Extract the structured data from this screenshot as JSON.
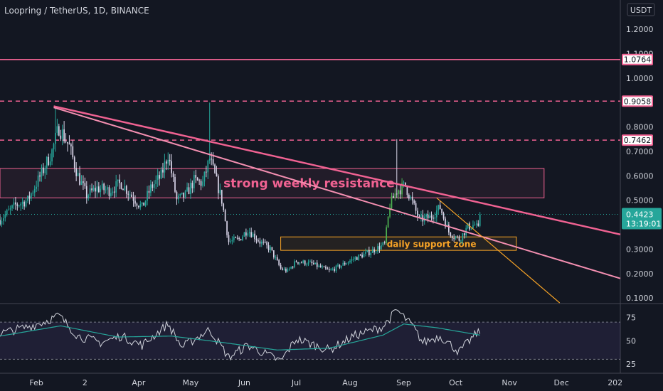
{
  "header": {
    "title": "Loopring / TetherUS, 1D, BINANCE"
  },
  "currency": "USDT",
  "colors": {
    "background": "#131722",
    "up": "#26a69a",
    "up_bright": "#4caf50",
    "down": "#d8d4e8",
    "resistance": "#f06292",
    "trendline_light": "#f48fb1",
    "support": "#f7a326",
    "rsi_line": "#d1d4dc",
    "rsi_ma": "#26a69a",
    "rsi_band": "#2a2e39",
    "grid": "#2a2e39",
    "axis_text": "#d1d4dc",
    "current_price": "#26a69a"
  },
  "chart_data": {
    "type": "candlestick",
    "price_axis": {
      "ticks": [
        "1.2000",
        "1.1000",
        "1.0000",
        "0.9000",
        "0.8000",
        "0.7000",
        "0.6000",
        "0.5000",
        "0.4000",
        "0.3000",
        "0.2000",
        "0.1000"
      ],
      "range": [
        0.08,
        1.32
      ]
    },
    "rsi_axis": {
      "ticks": [
        "75",
        "50",
        "25"
      ],
      "range": [
        15,
        90
      ],
      "band": [
        30,
        70
      ]
    },
    "x_axis": {
      "range": [
        "2021-01-11",
        "2022-01-04"
      ],
      "ticks": [
        {
          "date": "2021-02-01",
          "label": "Feb"
        },
        {
          "date": "2021-03-01",
          "label": "2"
        },
        {
          "date": "2021-04-01",
          "label": "Apr"
        },
        {
          "date": "2021-05-01",
          "label": "May"
        },
        {
          "date": "2021-06-01",
          "label": "Jun"
        },
        {
          "date": "2021-07-01",
          "label": "Jul"
        },
        {
          "date": "2021-08-01",
          "label": "Aug"
        },
        {
          "date": "2021-09-01",
          "label": "Sep"
        },
        {
          "date": "2021-10-01",
          "label": "Oct"
        },
        {
          "date": "2021-11-01",
          "label": "Nov"
        },
        {
          "date": "2021-12-01",
          "label": "Dec"
        },
        {
          "date": "2022-01-01",
          "label": "202"
        }
      ]
    },
    "price_path": [
      [
        "2021-01-11",
        0.42
      ],
      [
        "2021-01-20",
        0.48
      ],
      [
        "2021-01-27",
        0.5
      ],
      [
        "2021-02-04",
        0.61
      ],
      [
        "2021-02-10",
        0.7
      ],
      [
        "2021-02-14",
        0.8
      ],
      [
        "2021-02-20",
        0.72
      ],
      [
        "2021-02-25",
        0.6
      ],
      [
        "2021-03-02",
        0.52
      ],
      [
        "2021-03-08",
        0.55
      ],
      [
        "2021-03-15",
        0.54
      ],
      [
        "2021-03-22",
        0.57
      ],
      [
        "2021-03-29",
        0.51
      ],
      [
        "2021-04-03",
        0.47
      ],
      [
        "2021-04-08",
        0.55
      ],
      [
        "2021-04-14",
        0.6
      ],
      [
        "2021-04-18",
        0.69
      ],
      [
        "2021-04-23",
        0.5
      ],
      [
        "2021-04-28",
        0.52
      ],
      [
        "2021-05-03",
        0.58
      ],
      [
        "2021-05-08",
        0.57
      ],
      [
        "2021-05-12",
        0.67
      ],
      [
        "2021-05-15",
        0.6
      ],
      [
        "2021-05-19",
        0.5
      ],
      [
        "2021-05-23",
        0.33
      ],
      [
        "2021-05-29",
        0.34
      ],
      [
        "2021-06-03",
        0.38
      ],
      [
        "2021-06-10",
        0.33
      ],
      [
        "2021-06-16",
        0.3
      ],
      [
        "2021-06-22",
        0.22
      ],
      [
        "2021-06-26",
        0.21
      ],
      [
        "2021-07-01",
        0.25
      ],
      [
        "2021-07-10",
        0.24
      ],
      [
        "2021-07-20",
        0.21
      ],
      [
        "2021-07-26",
        0.23
      ],
      [
        "2021-08-03",
        0.26
      ],
      [
        "2021-08-13",
        0.29
      ],
      [
        "2021-08-21",
        0.32
      ],
      [
        "2021-08-24",
        0.48
      ],
      [
        "2021-08-28",
        0.54
      ],
      [
        "2021-09-02",
        0.56
      ],
      [
        "2021-09-06",
        0.49
      ],
      [
        "2021-09-10",
        0.42
      ],
      [
        "2021-09-16",
        0.43
      ],
      [
        "2021-09-22",
        0.47
      ],
      [
        "2021-09-27",
        0.37
      ],
      [
        "2021-10-03",
        0.34
      ],
      [
        "2021-10-08",
        0.39
      ],
      [
        "2021-10-12",
        0.4
      ],
      [
        "2021-10-14",
        0.38
      ],
      [
        "2021-10-15",
        0.442
      ]
    ],
    "rsi_path": [
      [
        "2021-01-11",
        58
      ],
      [
        "2021-01-25",
        64
      ],
      [
        "2021-02-05",
        70
      ],
      [
        "2021-02-14",
        77
      ],
      [
        "2021-02-25",
        55
      ],
      [
        "2021-03-10",
        48
      ],
      [
        "2021-03-22",
        55
      ],
      [
        "2021-04-03",
        45
      ],
      [
        "2021-04-18",
        68
      ],
      [
        "2021-04-26",
        43
      ],
      [
        "2021-05-12",
        62
      ],
      [
        "2021-05-23",
        32
      ],
      [
        "2021-06-03",
        45
      ],
      [
        "2021-06-22",
        28
      ],
      [
        "2021-07-01",
        52
      ],
      [
        "2021-07-20",
        40
      ],
      [
        "2021-08-03",
        55
      ],
      [
        "2021-08-20",
        65
      ],
      [
        "2021-08-28",
        83
      ],
      [
        "2021-09-06",
        66
      ],
      [
        "2021-09-12",
        48
      ],
      [
        "2021-09-22",
        55
      ],
      [
        "2021-10-03",
        38
      ],
      [
        "2021-10-10",
        52
      ],
      [
        "2021-10-15",
        61
      ]
    ],
    "rsi_ma_path": [
      [
        "2021-01-11",
        55
      ],
      [
        "2021-02-15",
        66
      ],
      [
        "2021-03-20",
        54
      ],
      [
        "2021-04-20",
        55
      ],
      [
        "2021-05-20",
        48
      ],
      [
        "2021-06-20",
        40
      ],
      [
        "2021-07-20",
        42
      ],
      [
        "2021-08-20",
        56
      ],
      [
        "2021-09-01",
        68
      ],
      [
        "2021-09-20",
        64
      ],
      [
        "2021-10-15",
        56
      ]
    ],
    "horizontal_levels": [
      {
        "price": 1.0764,
        "label": "1.0764",
        "style": "solid"
      },
      {
        "price": 0.9058,
        "label": "0.9058",
        "style": "dashed"
      },
      {
        "price": 0.7462,
        "label": "0.7462",
        "style": "dashed"
      }
    ],
    "current_price": {
      "label": "0.4423",
      "countdown": "13:19:01",
      "price": 0.4423
    },
    "zones": [
      {
        "label": "strong weekly resistance",
        "from": "2021-01-11",
        "to": "2021-11-21",
        "top": 0.63,
        "bottom": 0.51,
        "kind": "resistance"
      },
      {
        "label": "daily support zone",
        "from": "2021-06-22",
        "to": "2021-11-05",
        "top": 0.35,
        "bottom": 0.295,
        "kind": "support"
      }
    ],
    "trendlines": [
      {
        "from": [
          "2021-02-11",
          0.885
        ],
        "to": [
          "2022-01-04",
          0.36
        ],
        "color": "#f06292",
        "width": 2.5
      },
      {
        "from": [
          "2021-02-11",
          0.88
        ],
        "to": [
          "2022-01-04",
          0.18
        ],
        "color": "#f48fb1",
        "width": 2
      },
      {
        "from": [
          "2021-09-20",
          0.51
        ],
        "to": [
          "2021-11-30",
          0.08
        ],
        "color": "#f7a326",
        "width": 1.2
      }
    ]
  }
}
